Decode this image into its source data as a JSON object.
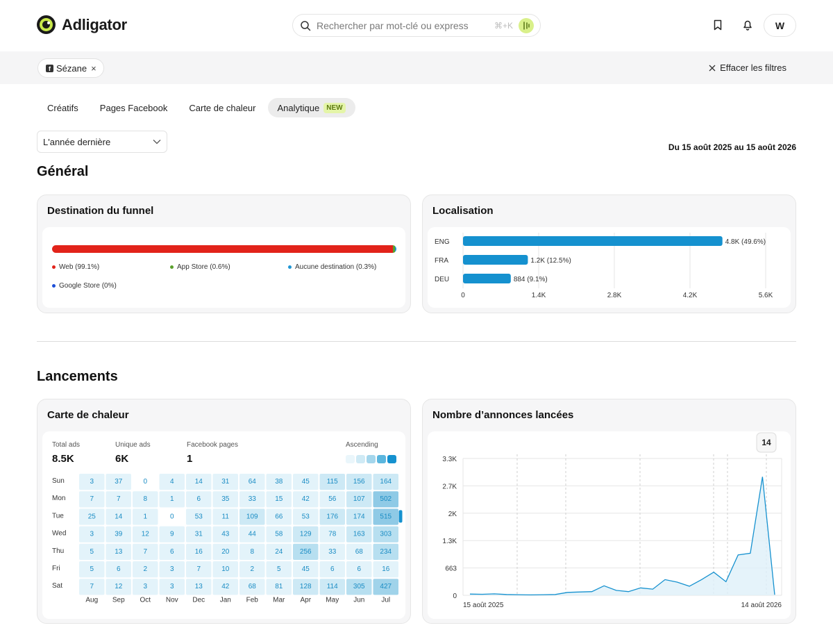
{
  "app": {
    "name": "Adligator"
  },
  "search": {
    "placeholder": "Rechercher par mot-clé ou express",
    "shortcut": "⌘+K"
  },
  "user": {
    "initial": "W"
  },
  "filters": {
    "chip_label": "Sézane",
    "clear_label": "Effacer les filtres"
  },
  "tabs": [
    {
      "label": "Créatifs"
    },
    {
      "label": "Pages Facebook"
    },
    {
      "label": "Carte de chaleur"
    },
    {
      "label": "Analytique",
      "badge": "NEW",
      "active": true
    }
  ],
  "period": {
    "selected": "L'année dernière",
    "range_text": "Du 15 août 2025 au 15 août 2026"
  },
  "sections": {
    "general": "Général",
    "launches": "Lancements"
  },
  "funnel": {
    "title": "Destination du funnel",
    "segments": [
      {
        "label": "Web (99.1%)",
        "value": 99.1,
        "color": "#e2231a"
      },
      {
        "label": "App Store (0.6%)",
        "value": 0.6,
        "color": "#5aa02c"
      },
      {
        "label": "Aucune destination (0.3%)",
        "value": 0.3,
        "color": "#1f96d4"
      },
      {
        "label": "Google Store (0%)",
        "value": 0,
        "color": "#1d4fd8"
      }
    ]
  },
  "chart_data": [
    {
      "type": "bar",
      "title": "Localisation",
      "orientation": "horizontal",
      "categories": [
        "ENG",
        "FRA",
        "DEU"
      ],
      "values": [
        4800,
        1200,
        884
      ],
      "data_labels": [
        "4.8K (49.6%)",
        "1.2K (12.5%)",
        "884 (9.1%)"
      ],
      "xlim": [
        0,
        5600
      ],
      "x_ticks": [
        "0",
        "1.4K",
        "2.8K",
        "4.2K",
        "5.6K"
      ],
      "grid": true,
      "color": "#1591cf"
    },
    {
      "type": "heatmap",
      "title": "Carte de chaleur",
      "stats": [
        {
          "label": "Total ads",
          "value": "8.5K"
        },
        {
          "label": "Unique ads",
          "value": "6K"
        },
        {
          "label": "Facebook pages",
          "value": "1"
        }
      ],
      "scale_label": "Ascending",
      "rows": [
        "Sun",
        "Mon",
        "Tue",
        "Wed",
        "Thu",
        "Fri",
        "Sat"
      ],
      "columns": [
        "Aug",
        "Sep",
        "Oct",
        "Nov",
        "Dec",
        "Jan",
        "Feb",
        "Mar",
        "Apr",
        "May",
        "Jun",
        "Jul"
      ],
      "values": [
        [
          3,
          37,
          0,
          4,
          14,
          31,
          64,
          38,
          45,
          115,
          156,
          164
        ],
        [
          7,
          7,
          8,
          1,
          6,
          35,
          33,
          15,
          42,
          56,
          107,
          502
        ],
        [
          25,
          14,
          1,
          0,
          53,
          11,
          109,
          66,
          53,
          176,
          174,
          515
        ],
        [
          3,
          39,
          12,
          9,
          31,
          43,
          44,
          58,
          129,
          78,
          163,
          303
        ],
        [
          5,
          13,
          7,
          6,
          16,
          20,
          8,
          24,
          256,
          33,
          68,
          234
        ],
        [
          5,
          6,
          2,
          3,
          7,
          10,
          2,
          5,
          45,
          6,
          6,
          16
        ],
        [
          7,
          12,
          3,
          3,
          13,
          42,
          68,
          81,
          128,
          114,
          305,
          427
        ]
      ]
    },
    {
      "type": "area",
      "title": "Nombre d’annonces lancées",
      "tooltip_value": "14",
      "y_ticks": [
        "0",
        "663",
        "1.3K",
        "2K",
        "2.7K",
        "3.3K"
      ],
      "ylim": [
        0,
        3315
      ],
      "x_labels": [
        "15 août 2025",
        "14 août 2026"
      ],
      "values": [
        30,
        25,
        35,
        20,
        15,
        10,
        15,
        20,
        70,
        80,
        90,
        230,
        120,
        90,
        180,
        150,
        380,
        320,
        220,
        380,
        560,
        330,
        980,
        1020,
        2870,
        14
      ],
      "color": "#1591cf"
    }
  ]
}
